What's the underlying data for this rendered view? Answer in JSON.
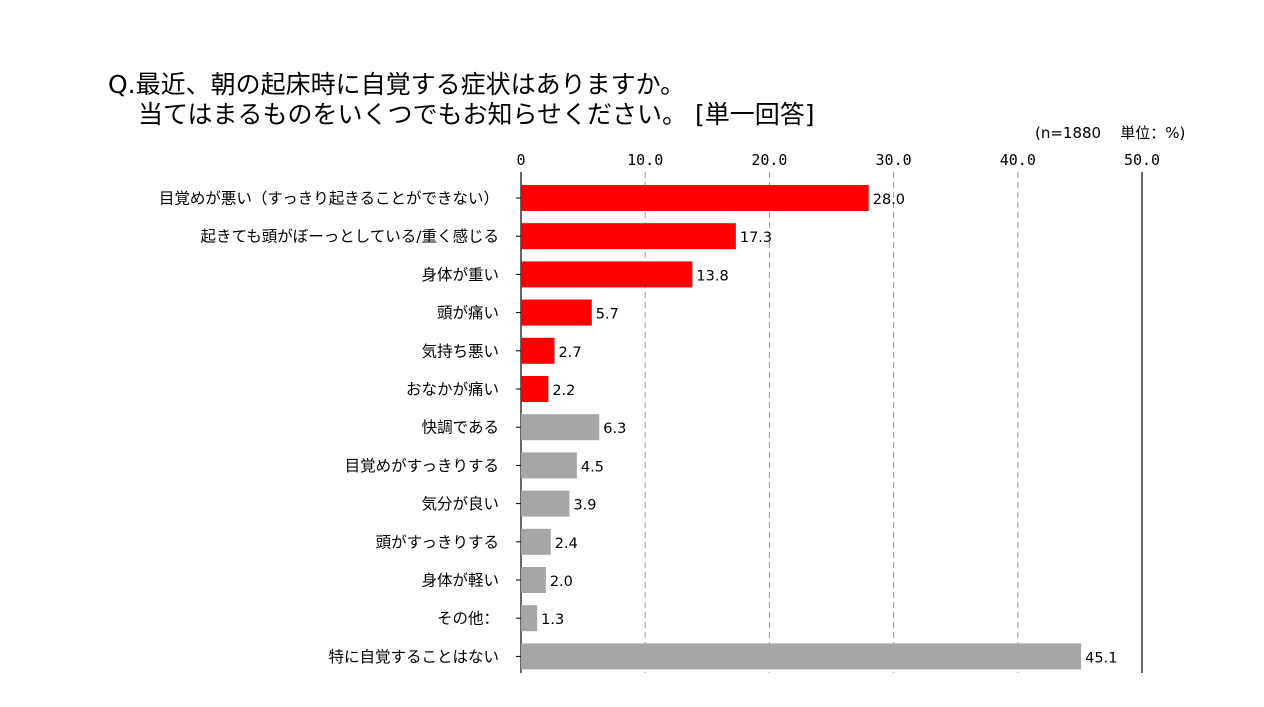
{
  "chart_data": {
    "type": "bar",
    "orientation": "horizontal",
    "title_line1": "Q.最近、朝の起床時に自覚する症状はありますか。",
    "title_line2": "当てはまるものをいくつでもお知らせください。 [単一回答]",
    "sample_note": "(n=1880",
    "unit_note": "単位：%)",
    "xlim": [
      0,
      50
    ],
    "ticks": [
      {
        "v": 0,
        "label": "0"
      },
      {
        "v": 10,
        "label": "10.0"
      },
      {
        "v": 20,
        "label": "20.0"
      },
      {
        "v": 30,
        "label": "30.0"
      },
      {
        "v": 40,
        "label": "40.0"
      },
      {
        "v": 50,
        "label": "50.0"
      }
    ],
    "grid": "dashed vertical",
    "colors": {
      "symptom": "#ff0000",
      "other": "#a6a6a6"
    },
    "bars": [
      {
        "category": "目覚めが悪い（すっきり起きることができない）",
        "value": 28.0,
        "label": "28.0",
        "group": "symptom"
      },
      {
        "category": "起きても頭がぼーっとしている/重く感じる",
        "value": 17.3,
        "label": "17.3",
        "group": "symptom"
      },
      {
        "category": "身体が重い",
        "value": 13.8,
        "label": "13.8",
        "group": "symptom"
      },
      {
        "category": "頭が痛い",
        "value": 5.7,
        "label": "5.7",
        "group": "symptom"
      },
      {
        "category": "気持ち悪い",
        "value": 2.7,
        "label": "2.7",
        "group": "symptom"
      },
      {
        "category": "おなかが痛い",
        "value": 2.2,
        "label": "2.2",
        "group": "symptom"
      },
      {
        "category": "快調である",
        "value": 6.3,
        "label": "6.3",
        "group": "other"
      },
      {
        "category": "目覚めがすっきりする",
        "value": 4.5,
        "label": "4.5",
        "group": "other"
      },
      {
        "category": "気分が良い",
        "value": 3.9,
        "label": "3.9",
        "group": "other"
      },
      {
        "category": "頭がすっきりする",
        "value": 2.4,
        "label": "2.4",
        "group": "other"
      },
      {
        "category": "身体が軽い",
        "value": 2.0,
        "label": "2.0",
        "group": "other"
      },
      {
        "category": "その他：",
        "value": 1.3,
        "label": "1.3",
        "group": "other"
      },
      {
        "category": "特に自覚することはない",
        "value": 45.1,
        "label": "45.1",
        "group": "other"
      }
    ]
  }
}
